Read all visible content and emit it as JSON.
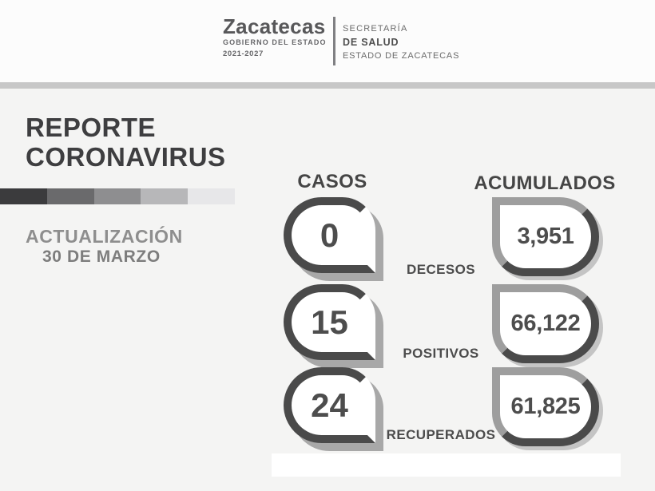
{
  "header": {
    "brand_name": "Zacatecas",
    "brand_line1": "GOBIERNO DEL ESTADO",
    "brand_line2": "2021-2027",
    "secretariat_line1": "SECRETARÍA",
    "secretariat_line2": "DE SALUD",
    "secretariat_line3": "ESTADO DE ZACATECAS"
  },
  "report": {
    "title_line1": "REPORTE",
    "title_line2": "CORONAVIRUS",
    "update_label": "ACTUALIZACIÓN",
    "update_date": "30 DE MARZO"
  },
  "stats": {
    "casos_header": "CASOS",
    "acumulados_header": "ACUMULADOS",
    "rows": [
      {
        "label": "DECESOS",
        "casos": "0",
        "acumulados": "3,951"
      },
      {
        "label": "POSITIVOS",
        "casos": "15",
        "acumulados": "66,122"
      },
      {
        "label": "RECUPERADOS",
        "casos": "24",
        "acumulados": "61,825"
      }
    ]
  },
  "gradient_bar": {
    "colors": [
      "#3b3b3d",
      "#6a6a6c",
      "#8e8e90",
      "#b7b7b9",
      "#e7e7e9"
    ]
  },
  "colors": {
    "background": "#f4f4f3",
    "header_background": "#fcfcfc",
    "divider_gray": "#c7c7c7",
    "badge_border_dark": "#4a4a4a",
    "badge_shadow_gray": "#a8a8a8",
    "badge_border_light": "#9e9e9e",
    "title_text": "#3e3e40",
    "muted_text": "#8e8e8e"
  }
}
